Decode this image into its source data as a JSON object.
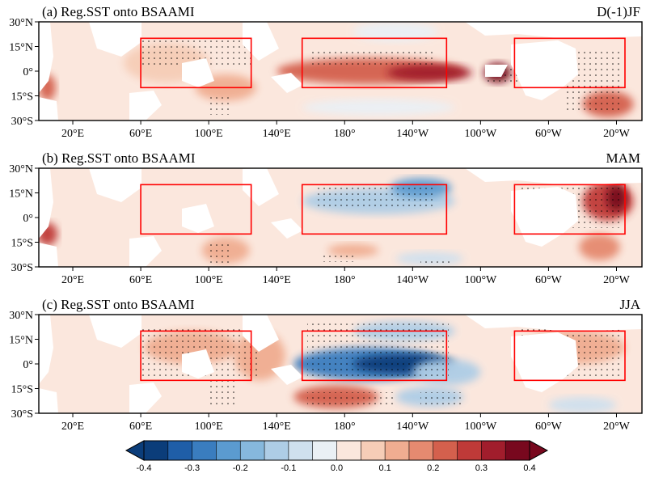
{
  "chart_data": [
    {
      "type": "heatmap",
      "title": "(a) Reg.SST onto BSAAMI",
      "season": "D(-1)JF",
      "x_ticks": [
        "20°E",
        "60°E",
        "100°E",
        "140°E",
        "180°",
        "140°W",
        "100°W",
        "60°W",
        "20°W"
      ],
      "y_ticks": [
        "30°N",
        "15°N",
        "0°",
        "15°S",
        "30°S"
      ],
      "x_tick_values": [
        20,
        60,
        100,
        140,
        180,
        220,
        260,
        300,
        340
      ],
      "y_tick_values": [
        30,
        15,
        0,
        -15,
        -30
      ],
      "xlim": [
        0,
        355
      ],
      "ylim": [
        -30,
        30
      ],
      "boxes": [
        {
          "lon": [
            60,
            125
          ],
          "lat": [
            -10,
            20
          ]
        },
        {
          "lon": [
            155,
            240
          ],
          "lat": [
            -10,
            20
          ]
        },
        {
          "lon": [
            280,
            345
          ],
          "lat": [
            -10,
            20
          ]
        }
      ],
      "features": [
        {
          "lon": 195,
          "lat": 0,
          "rx": 55,
          "ry": 8,
          "value": 0.2
        },
        {
          "lon": 230,
          "lat": -1,
          "rx": 25,
          "ry": 5,
          "value": 0.3
        },
        {
          "lon": 270,
          "lat": -1,
          "rx": 8,
          "ry": 6,
          "value": 0.4
        },
        {
          "lon": 335,
          "lat": -20,
          "rx": 15,
          "ry": 8,
          "value": 0.2
        },
        {
          "lon": 75,
          "lat": 5,
          "rx": 25,
          "ry": 12,
          "value": 0.08
        },
        {
          "lon": 110,
          "lat": -10,
          "rx": 18,
          "ry": 8,
          "value": 0.1
        },
        {
          "lon": 5,
          "lat": -10,
          "rx": 5,
          "ry": 8,
          "value": 0.2
        },
        {
          "lon": 210,
          "lat": 24,
          "rx": 25,
          "ry": 6,
          "value": -0.05
        },
        {
          "lon": 200,
          "lat": -22,
          "rx": 45,
          "ry": 5,
          "value": -0.04
        }
      ]
    },
    {
      "type": "heatmap",
      "title": "(b) Reg.SST onto BSAAMI",
      "season": "MAM",
      "x_ticks": [
        "20°E",
        "60°E",
        "100°E",
        "140°E",
        "180°",
        "140°W",
        "100°W",
        "60°W",
        "20°W"
      ],
      "y_ticks": [
        "30°N",
        "15°N",
        "0°",
        "15°S",
        "30°S"
      ],
      "x_tick_values": [
        20,
        60,
        100,
        140,
        180,
        220,
        260,
        300,
        340
      ],
      "y_tick_values": [
        30,
        15,
        0,
        -15,
        -30
      ],
      "xlim": [
        0,
        355
      ],
      "ylim": [
        -30,
        30
      ],
      "boxes": [
        {
          "lon": [
            60,
            125
          ],
          "lat": [
            -10,
            20
          ]
        },
        {
          "lon": [
            155,
            240
          ],
          "lat": [
            -10,
            20
          ]
        },
        {
          "lon": [
            280,
            345
          ],
          "lat": [
            -10,
            20
          ]
        }
      ],
      "features": [
        {
          "lon": 200,
          "lat": 10,
          "rx": 45,
          "ry": 8,
          "value": -0.15
        },
        {
          "lon": 225,
          "lat": 18,
          "rx": 18,
          "ry": 6,
          "value": -0.25
        },
        {
          "lon": 335,
          "lat": 10,
          "rx": 15,
          "ry": 12,
          "value": 0.25
        },
        {
          "lon": 340,
          "lat": 12,
          "rx": 6,
          "ry": 8,
          "value": 0.35
        },
        {
          "lon": 330,
          "lat": -18,
          "rx": 12,
          "ry": 8,
          "value": 0.15
        },
        {
          "lon": 5,
          "lat": -10,
          "rx": 6,
          "ry": 7,
          "value": 0.25
        },
        {
          "lon": 110,
          "lat": -20,
          "rx": 14,
          "ry": 8,
          "value": 0.12
        },
        {
          "lon": 230,
          "lat": -25,
          "rx": 20,
          "ry": 4,
          "value": -0.1
        },
        {
          "lon": 185,
          "lat": -20,
          "rx": 15,
          "ry": 4,
          "value": 0.12
        }
      ]
    },
    {
      "type": "heatmap",
      "title": "(c) Reg.SST onto BSAAMI",
      "season": "JJA",
      "x_ticks": [
        "20°E",
        "60°E",
        "100°E",
        "140°E",
        "180°",
        "140°W",
        "100°W",
        "60°W",
        "20°W"
      ],
      "y_ticks": [
        "30°N",
        "15°N",
        "0°",
        "15°S",
        "30°S"
      ],
      "x_tick_values": [
        20,
        60,
        100,
        140,
        180,
        220,
        260,
        300,
        340
      ],
      "y_tick_values": [
        30,
        15,
        0,
        -15,
        -30
      ],
      "xlim": [
        0,
        355
      ],
      "ylim": [
        -30,
        30
      ],
      "boxes": [
        {
          "lon": [
            60,
            125
          ],
          "lat": [
            -10,
            20
          ]
        },
        {
          "lon": [
            155,
            240
          ],
          "lat": [
            -10,
            20
          ]
        },
        {
          "lon": [
            280,
            345
          ],
          "lat": [
            -10,
            20
          ]
        }
      ],
      "features": [
        {
          "lon": 195,
          "lat": 0,
          "rx": 45,
          "ry": 10,
          "value": -0.3
        },
        {
          "lon": 215,
          "lat": 0,
          "rx": 30,
          "ry": 6,
          "value": -0.4
        },
        {
          "lon": 215,
          "lat": 20,
          "rx": 30,
          "ry": 6,
          "value": -0.15
        },
        {
          "lon": 240,
          "lat": -5,
          "rx": 20,
          "ry": 8,
          "value": -0.15
        },
        {
          "lon": 315,
          "lat": 10,
          "rx": 30,
          "ry": 10,
          "value": 0.12
        },
        {
          "lon": 90,
          "lat": 10,
          "rx": 28,
          "ry": 10,
          "value": 0.12
        },
        {
          "lon": 130,
          "lat": 5,
          "rx": 15,
          "ry": 15,
          "value": 0.12
        },
        {
          "lon": 175,
          "lat": -20,
          "rx": 25,
          "ry": 7,
          "value": 0.2
        },
        {
          "lon": 230,
          "lat": -20,
          "rx": 20,
          "ry": 6,
          "value": -0.15
        },
        {
          "lon": 320,
          "lat": -25,
          "rx": 20,
          "ry": 5,
          "value": -0.08
        }
      ]
    }
  ],
  "colorbar": {
    "tick_labels": [
      "-0.4",
      "-0.3",
      "-0.2",
      "-0.1",
      "0.0",
      "0.1",
      "0.2",
      "0.3",
      "0.4"
    ],
    "levels": [
      -0.4,
      -0.35,
      -0.3,
      -0.25,
      -0.2,
      -0.15,
      -0.1,
      -0.05,
      0,
      0.05,
      0.1,
      0.15,
      0.2,
      0.25,
      0.3,
      0.35,
      0.4
    ],
    "colors": [
      "#0b3d7a",
      "#1f5ea8",
      "#3a7dbf",
      "#5b9bd0",
      "#86b8dd",
      "#aecde6",
      "#cfe0ee",
      "#eaf0f5",
      "#fbe7dd",
      "#f6cdb7",
      "#f0ad91",
      "#e58a70",
      "#d4604d",
      "#bf3a38",
      "#a11d2c",
      "#78081e"
    ]
  },
  "colors": {
    "box": "#ff0000",
    "land": "#ffffff",
    "frame": "#000000",
    "stipple": "#000000"
  }
}
